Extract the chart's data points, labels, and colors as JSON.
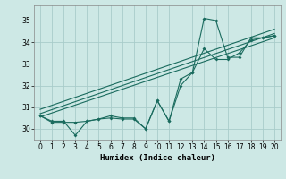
{
  "xlabel": "Humidex (Indice chaleur)",
  "background_color": "#cde8e5",
  "grid_color": "#a8ccca",
  "line_color": "#1a6b5e",
  "xlim": [
    -0.5,
    20.5
  ],
  "ylim": [
    29.5,
    35.7
  ],
  "yticks": [
    30,
    31,
    32,
    33,
    34,
    35
  ],
  "xticks": [
    0,
    1,
    2,
    3,
    4,
    5,
    6,
    7,
    8,
    9,
    10,
    11,
    12,
    13,
    14,
    15,
    16,
    17,
    18,
    19,
    20
  ],
  "line1_x": [
    0,
    1,
    2,
    3,
    4,
    5,
    6,
    7,
    8,
    9,
    10,
    11,
    12,
    13,
    14,
    15,
    16,
    17,
    18,
    19,
    20
  ],
  "line1_y": [
    30.6,
    30.35,
    30.35,
    29.7,
    30.35,
    30.45,
    30.5,
    30.45,
    30.45,
    30.0,
    31.3,
    30.35,
    32.0,
    32.6,
    35.1,
    35.0,
    33.3,
    33.3,
    34.2,
    34.2,
    34.3
  ],
  "line2_x": [
    0,
    1,
    2,
    3,
    4,
    5,
    6,
    7,
    8,
    9,
    10,
    11,
    12,
    13,
    14,
    15,
    16,
    17,
    18,
    19,
    20
  ],
  "line2_y": [
    30.6,
    30.3,
    30.3,
    30.3,
    30.35,
    30.45,
    30.6,
    30.5,
    30.5,
    30.0,
    31.3,
    30.35,
    32.3,
    32.6,
    33.7,
    33.2,
    33.2,
    33.5,
    34.1,
    34.2,
    34.3
  ],
  "straight_lines": [
    {
      "x0": 0,
      "y0": 30.55,
      "x1": 20,
      "y1": 34.2
    },
    {
      "x0": 0,
      "y0": 30.7,
      "x1": 20,
      "y1": 34.4
    },
    {
      "x0": 0,
      "y0": 30.9,
      "x1": 20,
      "y1": 34.6
    }
  ],
  "tick_fontsize": 5.5,
  "xlabel_fontsize": 6.5
}
